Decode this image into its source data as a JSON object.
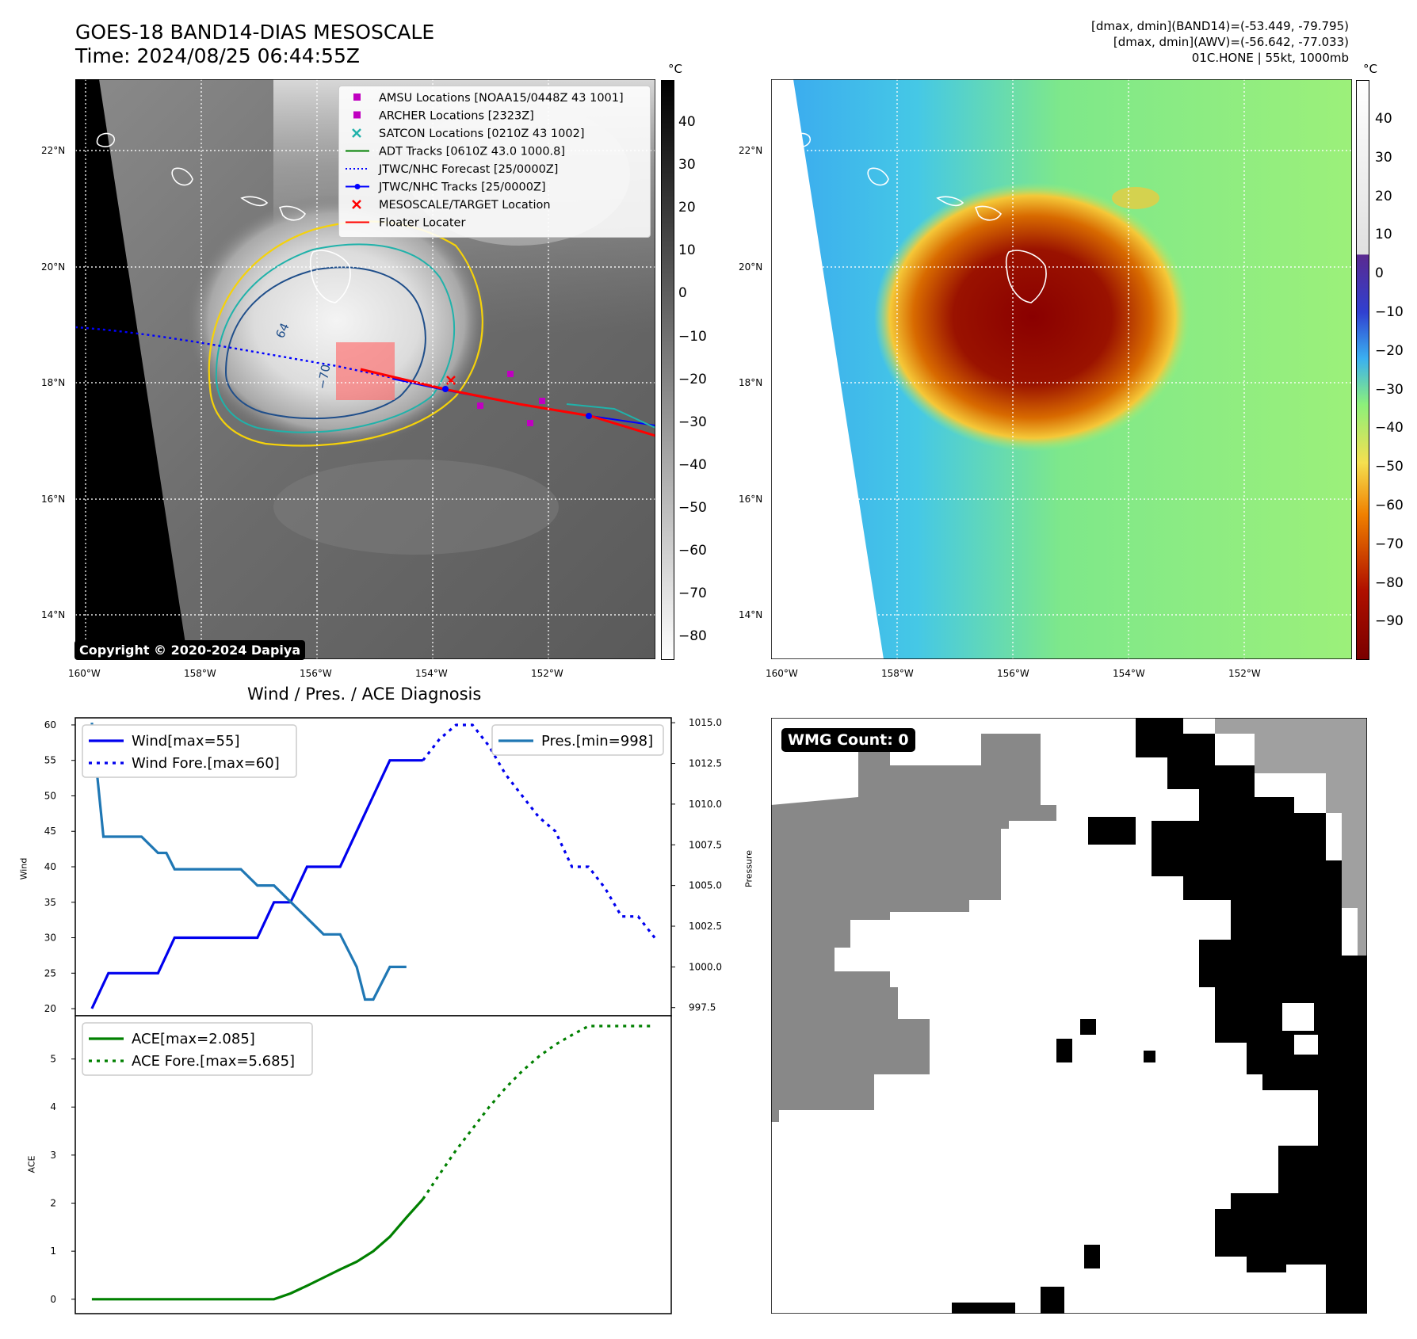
{
  "header": {
    "title_line1": "GOES-18 BAND14-DIAS MESOSCALE",
    "title_line2": "Time: 2024/08/25 06:44:55Z",
    "info_line1": "[dmax, dmin](BAND14)=(-53.449, -79.795)",
    "info_line2": "[dmax, dmin](AWV)=(-56.642, -77.033)",
    "info_line3": "01C.HONE | 55kt, 1000mb"
  },
  "map_panels": {
    "lat_labels": [
      "22°N",
      "20°N",
      "18°N",
      "16°N",
      "14°N"
    ],
    "lon_labels_left": [
      "160°W",
      "158°W",
      "156°W",
      "154°W",
      "152°W"
    ],
    "lon_labels_right": [
      "160°W",
      "158°W",
      "156°W",
      "154°W",
      "152°W"
    ],
    "unit_label": "°C",
    "left_colorbar_ticks": [
      "40",
      "30",
      "20",
      "10",
      "0",
      "−10",
      "−20",
      "−30",
      "−40",
      "−50",
      "−60",
      "−70",
      "−80"
    ],
    "right_colorbar_ticks": [
      "40",
      "30",
      "20",
      "10",
      "0",
      "−10",
      "−20",
      "−30",
      "−40",
      "−50",
      "−60",
      "−70",
      "−80",
      "−90"
    ],
    "copyright": "Copyright © 2020-2024 Dapiya",
    "contour_labels": [
      "64",
      "−70"
    ],
    "legend": [
      {
        "label": "AMSU Locations [NOAA15/0448Z 43 1001]",
        "marker": "square",
        "color": "#c000c0"
      },
      {
        "label": "ARCHER Locations [2323Z]",
        "marker": "square",
        "color": "#c000c0"
      },
      {
        "label": "SATCON Locations [0210Z 43 1002]",
        "marker": "x",
        "color": "#20b2aa"
      },
      {
        "label": "ADT Tracks [0610Z 43.0 1000.8]",
        "marker": "line",
        "color": "#008000"
      },
      {
        "label": "JTWC/NHC Forecast [25/0000Z]",
        "marker": "dotted",
        "color": "#0000ff"
      },
      {
        "label": "JTWC/NHC Tracks [25/0000Z]",
        "marker": "line-dot",
        "color": "#0000ff"
      },
      {
        "label": "MESOSCALE/TARGET Location",
        "marker": "x",
        "color": "#ff0000"
      },
      {
        "label": "Floater Locater",
        "marker": "line",
        "color": "#ff0000"
      }
    ]
  },
  "diagnosis": {
    "title": "Wind / Pres. / ACE Diagnosis",
    "wind_ylabel": "Wind",
    "pres_ylabel": "Pressure",
    "ace_ylabel": "ACE",
    "wind_ticks": [
      "60",
      "55",
      "50",
      "45",
      "40",
      "35",
      "30",
      "25",
      "20"
    ],
    "pres_ticks": [
      "1015.0",
      "1012.5",
      "1010.0",
      "1007.5",
      "1005.0",
      "1002.5",
      "1000.0",
      "997.5"
    ],
    "ace_ticks": [
      "5",
      "4",
      "3",
      "2",
      "1",
      "0"
    ],
    "legend_wind": "Wind[max=55]",
    "legend_wind_fore": "Wind Fore.[max=60]",
    "legend_pres": "Pres.[min=998]",
    "legend_ace": "ACE[max=2.085]",
    "legend_ace_fore": "ACE Fore.[max=5.685]"
  },
  "wmg": {
    "label": "WMG Count: 0"
  },
  "chart_data": [
    {
      "type": "line",
      "title": "Wind / Pres. / ACE Diagnosis",
      "ylabel": "Wind",
      "ylim": [
        19,
        61
      ],
      "xlim": [
        0,
        36
      ],
      "series": [
        {
          "name": "Wind[max=55]",
          "color": "#0000ee",
          "style": "solid",
          "x": [
            1,
            2,
            3,
            4,
            5,
            6,
            7,
            8,
            9,
            10,
            11,
            12,
            13,
            14,
            15,
            16,
            17,
            18,
            19,
            20,
            21
          ],
          "values": [
            20,
            25,
            25,
            25,
            25,
            30,
            30,
            30,
            30,
            30,
            30,
            35,
            35,
            40,
            40,
            40,
            45,
            50,
            55,
            55,
            55
          ]
        },
        {
          "name": "Wind Fore.[max=60]",
          "color": "#0000ee",
          "style": "dotted",
          "x": [
            21,
            22,
            23,
            24,
            25,
            26,
            27,
            28,
            29,
            30,
            31,
            32,
            33,
            34,
            35
          ],
          "values": [
            55,
            58,
            60,
            60,
            57,
            53,
            50,
            47,
            45,
            40,
            40,
            37,
            33,
            33,
            30
          ]
        }
      ]
    },
    {
      "type": "line",
      "ylabel": "Pressure",
      "ylim": [
        997,
        1015.3
      ],
      "xlim": [
        0,
        36
      ],
      "series": [
        {
          "name": "Pres.[min=998]",
          "color": "#1f77b4",
          "style": "solid",
          "x": [
            1,
            1.7,
            2.5,
            4,
            5,
            5.5,
            6,
            7,
            8,
            9,
            10,
            11,
            11.5,
            12,
            13,
            14,
            15,
            16,
            17,
            17.5,
            18,
            19,
            20
          ],
          "values": [
            1015,
            1008,
            1008,
            1008,
            1007,
            1007,
            1006,
            1006,
            1006,
            1006,
            1006,
            1005,
            1005,
            1005,
            1004,
            1003,
            1002,
            1002,
            1000,
            998,
            998,
            1000,
            1000
          ]
        }
      ]
    },
    {
      "type": "line",
      "ylabel": "ACE",
      "ylim": [
        -0.3,
        5.9
      ],
      "xlim": [
        0,
        36
      ],
      "series": [
        {
          "name": "ACE[max=2.085]",
          "color": "#008000",
          "style": "solid",
          "x": [
            1,
            4,
            7,
            10,
            11,
            12,
            13,
            14,
            15,
            16,
            17,
            18,
            19,
            20,
            21
          ],
          "values": [
            0,
            0,
            0,
            0,
            0,
            0,
            0.12,
            0.28,
            0.45,
            0.62,
            0.78,
            1.0,
            1.3,
            1.7,
            2.085
          ]
        },
        {
          "name": "ACE Fore.[max=5.685]",
          "color": "#008000",
          "style": "dotted",
          "x": [
            21,
            22,
            23,
            24,
            25,
            26,
            27,
            28,
            29,
            30,
            31,
            32,
            33,
            34,
            35
          ],
          "values": [
            2.085,
            2.6,
            3.1,
            3.55,
            4.0,
            4.4,
            4.75,
            5.05,
            5.3,
            5.5,
            5.685,
            5.685,
            5.685,
            5.685,
            5.685
          ]
        }
      ]
    }
  ]
}
